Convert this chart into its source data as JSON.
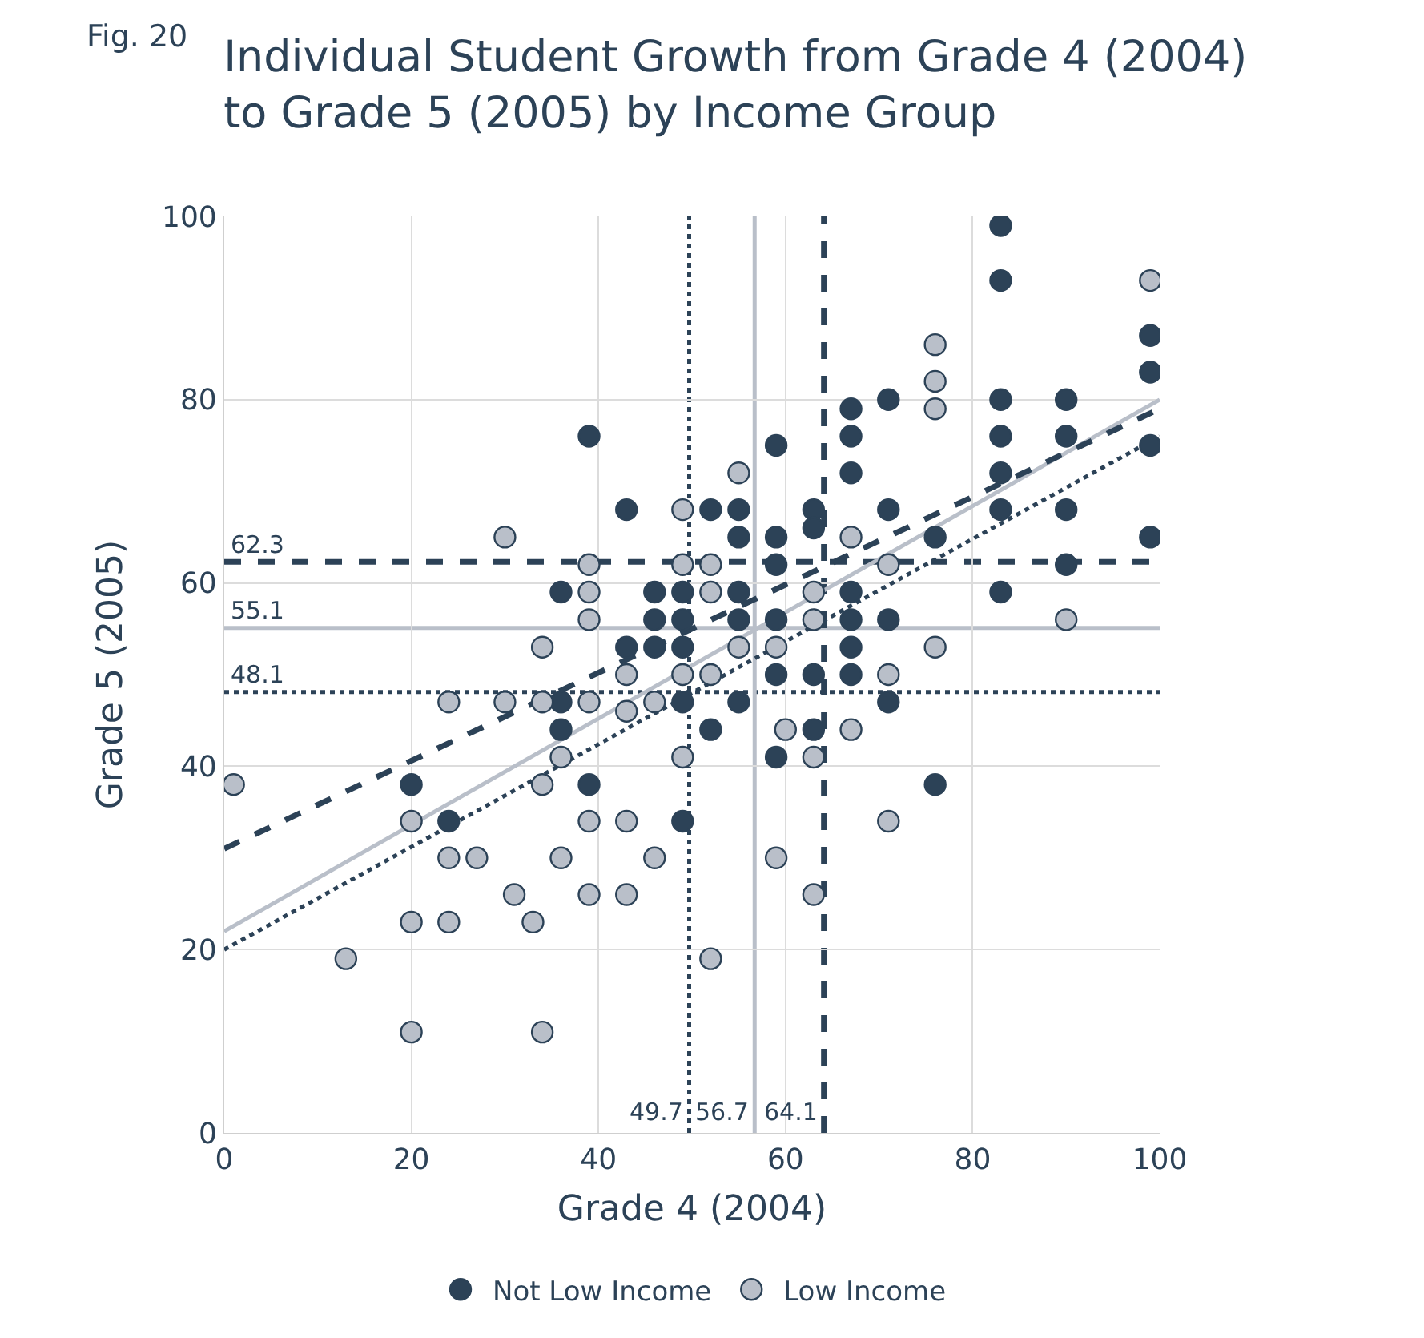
{
  "chart_data": {
    "type": "scatter",
    "title": "Individual Student Growth from Grade 4 (2004)\nto Grade 5 (2005) by Income Group",
    "annotations": [
      "Fig. 20"
    ],
    "xlabel": "Grade 4 (2004)",
    "ylabel": "Grade 5 (2005)",
    "xlim": [
      0,
      100
    ],
    "ylim": [
      0,
      100
    ],
    "xticks": [
      0,
      20,
      40,
      60,
      80,
      100
    ],
    "yticks": [
      0,
      20,
      40,
      60,
      80,
      100
    ],
    "grid": true,
    "legend": "bottom",
    "series": [
      {
        "name": "Not Low Income",
        "color": "#2c4257",
        "marker": "circle",
        "x": [
          39,
          43,
          36,
          46,
          49,
          46,
          49,
          43,
          46,
          49,
          20,
          24,
          36,
          49,
          36,
          39,
          49,
          83,
          83,
          99,
          99,
          67,
          71,
          83,
          90,
          59,
          67,
          83,
          90,
          99,
          67,
          83,
          52,
          55,
          63,
          71,
          83,
          90,
          55,
          59,
          63,
          76,
          99,
          59,
          90,
          83,
          55,
          67,
          55,
          59,
          67,
          71,
          67,
          59,
          63,
          67,
          55,
          52,
          63,
          71,
          59,
          76
        ],
        "values": [
          76,
          68,
          59,
          59,
          59,
          56,
          56,
          53,
          53,
          53,
          38,
          34,
          47,
          47,
          44,
          38,
          34,
          99,
          93,
          87,
          83,
          79,
          80,
          80,
          80,
          75,
          76,
          76,
          76,
          75,
          72,
          72,
          68,
          68,
          68,
          68,
          68,
          68,
          65,
          65,
          66,
          65,
          65,
          62,
          62,
          59,
          59,
          59,
          56,
          56,
          56,
          56,
          53,
          50,
          50,
          50,
          47,
          44,
          44,
          47,
          41,
          38
        ]
      },
      {
        "name": "Low Income",
        "color": "#b9bfc9",
        "marker": "circle",
        "x": [
          30,
          49,
          39,
          49,
          39,
          39,
          34,
          43,
          49,
          1,
          20,
          24,
          27,
          13,
          20,
          24,
          20,
          24,
          30,
          34,
          39,
          43,
          46,
          36,
          49,
          34,
          39,
          43,
          36,
          46,
          31,
          39,
          43,
          33,
          34,
          99,
          76,
          76,
          76,
          55,
          67,
          52,
          71,
          52,
          63,
          63,
          90,
          55,
          59,
          76,
          71,
          52,
          60,
          67,
          63,
          71,
          59,
          63,
          52
        ],
        "values": [
          65,
          68,
          62,
          62,
          59,
          56,
          53,
          50,
          50,
          38,
          34,
          30,
          30,
          19,
          23,
          23,
          11,
          47,
          47,
          47,
          47,
          46,
          47,
          41,
          41,
          38,
          34,
          34,
          30,
          30,
          26,
          26,
          26,
          23,
          11,
          93,
          86,
          82,
          79,
          72,
          65,
          62,
          62,
          59,
          59,
          56,
          56,
          53,
          53,
          53,
          50,
          50,
          44,
          44,
          41,
          34,
          30,
          26,
          19
        ]
      },
      {
        "type": "line",
        "marker": "none",
        "color": "#b9bfc9",
        "line_style": "solid",
        "x": [
          0,
          100
        ],
        "values": [
          22,
          80
        ]
      },
      {
        "type": "line",
        "marker": "none",
        "color": "#2c4257",
        "line_style": "dotted",
        "x": [
          0,
          100
        ],
        "values": [
          20,
          76
        ]
      },
      {
        "type": "line",
        "marker": "none",
        "color": "#2c4257",
        "line_style": "dashed",
        "x": [
          0,
          100
        ],
        "values": [
          31,
          79
        ]
      }
    ],
    "ref_lines": [
      {
        "axis": "y",
        "value": 62.3,
        "label": "62.3",
        "color": "#2c4257",
        "line_style": "dashed"
      },
      {
        "axis": "y",
        "value": 55.1,
        "label": "55.1",
        "color": "#b9bfc9",
        "line_style": "solid"
      },
      {
        "axis": "y",
        "value": 48.1,
        "label": "48.1",
        "color": "#2c4257",
        "line_style": "dotted"
      },
      {
        "axis": "x",
        "value": 49.7,
        "label": "49.7",
        "color": "#2c4257",
        "line_style": "dotted"
      },
      {
        "axis": "x",
        "value": 56.7,
        "label": "56.7",
        "color": "#b9bfc9",
        "line_style": "solid"
      },
      {
        "axis": "x",
        "value": 64.1,
        "label": "64.1",
        "color": "#2c4257",
        "line_style": "dashed"
      }
    ]
  }
}
